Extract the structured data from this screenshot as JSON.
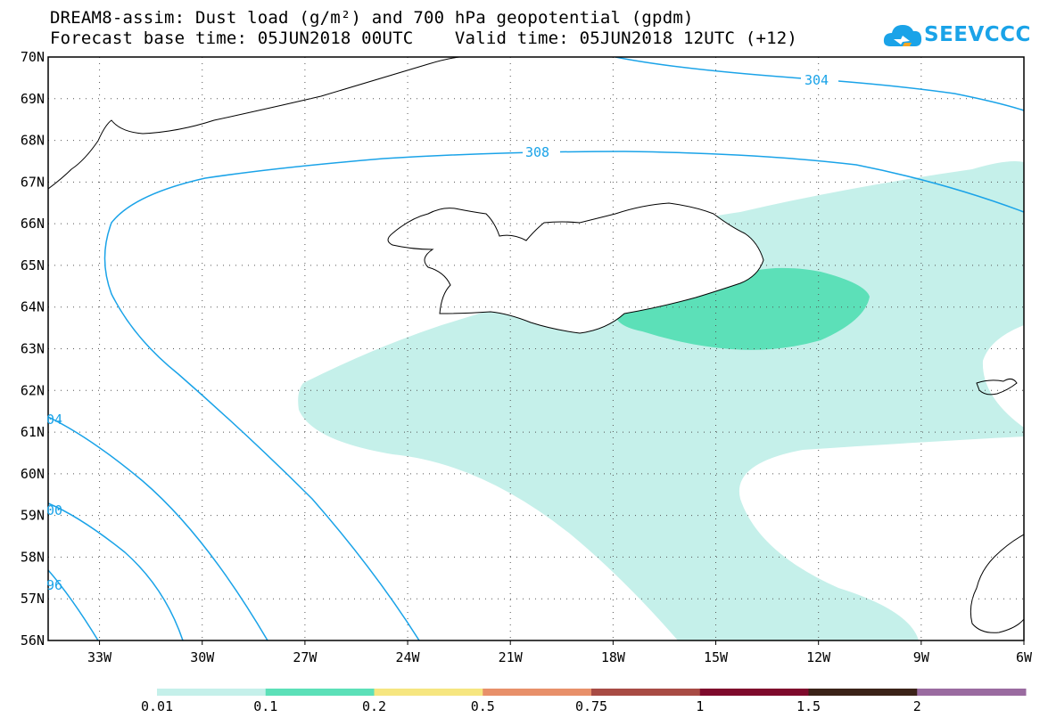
{
  "header": {
    "title_line1": "DREAM8-assim: Dust load (g/m²) and 700 hPa geopotential (gpdm)",
    "title_line2": "Forecast base time: 05JUN2018 00UTC    Valid time: 05JUN2018 12UTC (+12)"
  },
  "logo": {
    "text": "SEEVCCC",
    "icon": "cloud-logo-icon",
    "color": "#1aa3e8"
  },
  "map": {
    "projection": "lat-lon",
    "lon_range": [
      -34.5,
      -6
    ],
    "lat_range": [
      56,
      70
    ],
    "lat_labels": [
      "70N",
      "69N",
      "68N",
      "67N",
      "66N",
      "65N",
      "64N",
      "63N",
      "62N",
      "61N",
      "60N",
      "59N",
      "58N",
      "57N",
      "56N"
    ],
    "lon_labels": [
      "33W",
      "30W",
      "27W",
      "24W",
      "21W",
      "18W",
      "15W",
      "12W",
      "9W",
      "6W"
    ],
    "grid": "dotted",
    "contour_color": "#1aa3e8",
    "contour_labels": [
      "304",
      "308",
      "04",
      "00",
      "96"
    ]
  },
  "legend": {
    "colors": [
      "#c5f0ea",
      "#5ce0b8",
      "#f6e680",
      "#e8906a",
      "#a84b44",
      "#7e0a2c",
      "#3b2218",
      "#9a6ba0"
    ],
    "labels": [
      "0.01",
      "0.1",
      "0.2",
      "0.5",
      "0.75",
      "1",
      "1.5",
      "2"
    ]
  }
}
